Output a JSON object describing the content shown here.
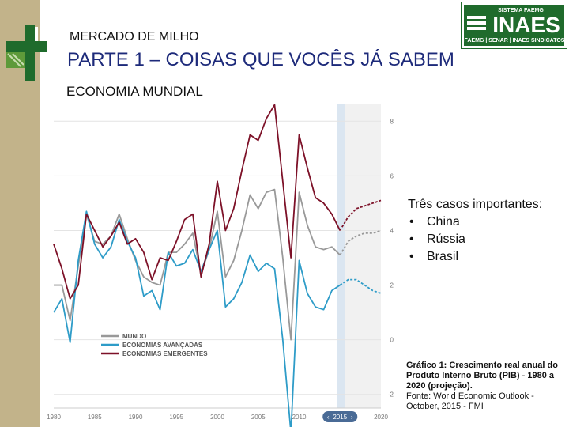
{
  "header": {
    "subtitle": "MERCADO DE MILHO",
    "title": "PARTE 1 – COISAS QUE VOCÊS JÁ SABEM",
    "section": "ECONOMIA MUNDIAL"
  },
  "logo": {
    "top_text": "SISTEMA FAEMG",
    "brand": "INAES",
    "bottom_text": "FAEMG | SENAR | INAES SINDICATOS",
    "color": "#1f6b2c"
  },
  "notes": {
    "heading": "Três casos importantes:",
    "items": [
      "China",
      "Rússia",
      "Brasil"
    ]
  },
  "caption": {
    "title": "Gráfico 1: Crescimento real anual do Produto Interno Bruto (PIB) - 1980 a 2020 (projeção).",
    "source": "Fonte: World Economic Outlook - October, 2015 - FMI"
  },
  "colors": {
    "sidebar": "#c2b38a",
    "accent_green": "#1f6b2c",
    "title_blue": "#1d2a7a"
  },
  "chart_data": {
    "type": "line",
    "x": [
      1980,
      1981,
      1982,
      1983,
      1984,
      1985,
      1986,
      1987,
      1988,
      1989,
      1990,
      1991,
      1992,
      1993,
      1994,
      1995,
      1996,
      1997,
      1998,
      1999,
      2000,
      2001,
      2002,
      2003,
      2004,
      2005,
      2006,
      2007,
      2008,
      2009,
      2010,
      2011,
      2012,
      2013,
      2014,
      2015,
      2016,
      2017,
      2018,
      2019,
      2020
    ],
    "projection_start": 2015,
    "ylim": [
      -2.5,
      8.5
    ],
    "yticks": [
      -2,
      0,
      2,
      4,
      6,
      8
    ],
    "xticks": [
      "1980",
      "1985",
      "1990",
      "1995",
      "2000",
      "2005",
      "2010",
      "2015",
      "2020"
    ],
    "series": [
      {
        "name": "MUNDO",
        "color": "#999999",
        "values": [
          2.0,
          2.0,
          0.7,
          2.7,
          4.6,
          3.6,
          3.5,
          3.8,
          4.6,
          3.7,
          2.9,
          2.3,
          2.1,
          2.0,
          3.2,
          3.2,
          3.5,
          3.9,
          2.4,
          3.3,
          4.7,
          2.3,
          2.9,
          4.0,
          5.3,
          4.8,
          5.4,
          5.5,
          3.0,
          0.0,
          5.4,
          4.2,
          3.4,
          3.3,
          3.4,
          3.1,
          3.6,
          3.8,
          3.9,
          3.9,
          4.0
        ]
      },
      {
        "name": "ECONOMIAS AVANÇADAS",
        "color": "#2e9cc8",
        "values": [
          1.0,
          1.5,
          -0.1,
          2.9,
          4.7,
          3.5,
          3.0,
          3.4,
          4.4,
          3.6,
          3.0,
          1.6,
          1.8,
          1.1,
          3.2,
          2.7,
          2.8,
          3.3,
          2.5,
          3.3,
          4.0,
          1.2,
          1.5,
          2.1,
          3.1,
          2.5,
          2.8,
          2.6,
          0.0,
          -3.4,
          2.9,
          1.7,
          1.2,
          1.1,
          1.8,
          2.0,
          2.2,
          2.2,
          2.0,
          1.8,
          1.7
        ]
      },
      {
        "name": "ECONOMIAS EMERGENTES",
        "color": "#7d1128",
        "values": [
          3.5,
          2.6,
          1.5,
          2.0,
          4.6,
          4.0,
          3.4,
          3.8,
          4.3,
          3.5,
          3.7,
          3.2,
          2.2,
          3.0,
          2.9,
          3.6,
          4.4,
          4.6,
          2.3,
          3.5,
          5.8,
          4.0,
          4.8,
          6.2,
          7.5,
          7.3,
          8.1,
          8.6,
          5.8,
          3.0,
          7.5,
          6.3,
          5.2,
          5.0,
          4.6,
          4.0,
          4.5,
          4.8,
          4.9,
          5.0,
          5.1
        ]
      }
    ]
  }
}
